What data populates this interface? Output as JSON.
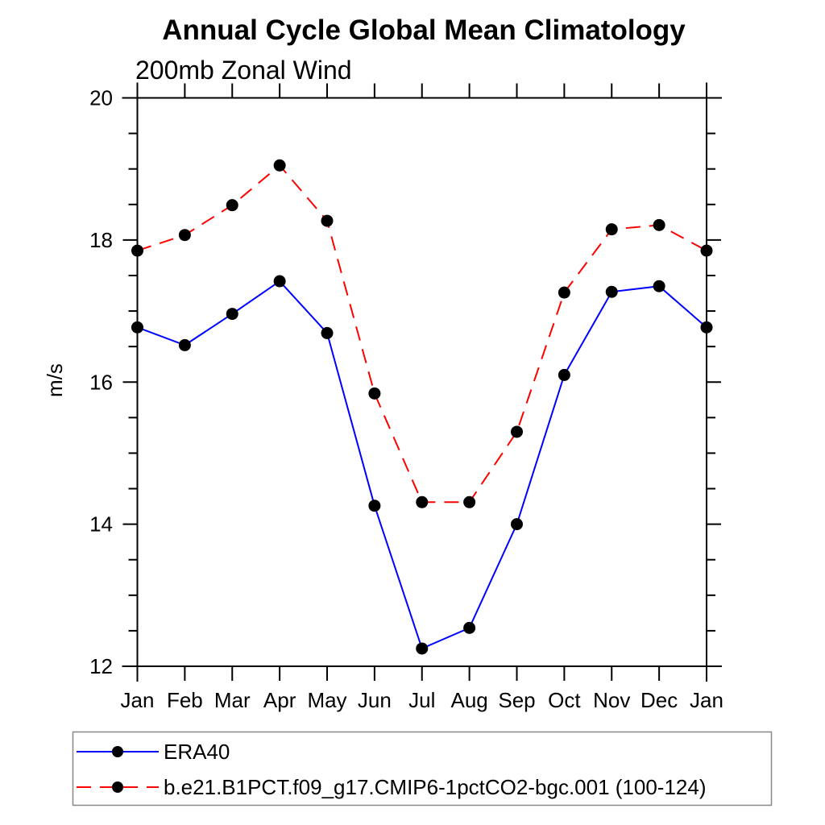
{
  "page": {
    "background": "#ffffff",
    "text_color": "#000000",
    "frame_color": "#000000",
    "legend_border_color": "#888888"
  },
  "chart_data": {
    "type": "line",
    "title": "Annual Cycle Global Mean Climatology",
    "subtitle": "200mb Zonal Wind",
    "xlabel": "",
    "ylabel": "m/s",
    "categories": [
      "Jan",
      "Feb",
      "Mar",
      "Apr",
      "May",
      "Jun",
      "Jul",
      "Aug",
      "Sep",
      "Oct",
      "Nov",
      "Dec",
      "Jan"
    ],
    "ylim": [
      12,
      20
    ],
    "y_major_ticks": [
      12,
      14,
      16,
      18,
      20
    ],
    "y_minor_step": 0.5,
    "grid": false,
    "legend_position": "bottom-left-box",
    "series": [
      {
        "name": "ERA40",
        "color": "#0000ff",
        "line_style": "solid",
        "marker": "filled-circle",
        "marker_color": "#000000",
        "values": [
          16.77,
          16.52,
          16.96,
          17.42,
          16.69,
          14.26,
          12.25,
          12.54,
          14.0,
          16.1,
          17.27,
          17.35,
          16.77
        ]
      },
      {
        "name": "b.e21.B1PCT.f09_g17.CMIP6-1pctCO2-bgc.001 (100-124)",
        "color": "#ff0000",
        "line_style": "dashed",
        "marker": "filled-circle",
        "marker_color": "#000000",
        "values": [
          17.85,
          18.07,
          18.49,
          19.05,
          18.27,
          15.84,
          14.31,
          14.31,
          15.3,
          17.26,
          18.15,
          18.21,
          17.85
        ]
      }
    ]
  }
}
